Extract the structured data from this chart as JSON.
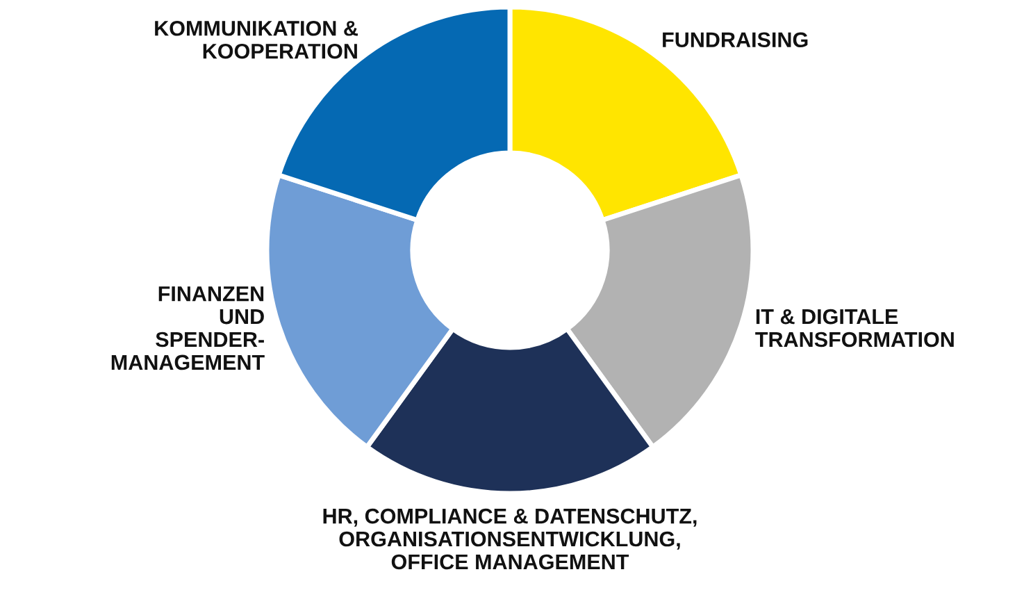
{
  "chart_data": {
    "type": "donut",
    "categories": [
      "FUNDRAISING",
      "IT & DIGITALE\nTRANSFORMATION",
      "HR, COMPLIANCE & DATENSCHUTZ,\nORGANISATIONSENTWICKLUNG,\nOFFICE MANAGEMENT",
      "FINANZEN\nUND\nSPENDER-\nMANAGEMENT",
      "KOMMUNIKATION &\nKOOPERATION"
    ],
    "values": [
      20,
      20,
      20,
      20,
      20
    ],
    "colors": [
      "#ffe500",
      "#b2b2b2",
      "#1e3158",
      "#6f9dd6",
      "#0569b3"
    ]
  }
}
